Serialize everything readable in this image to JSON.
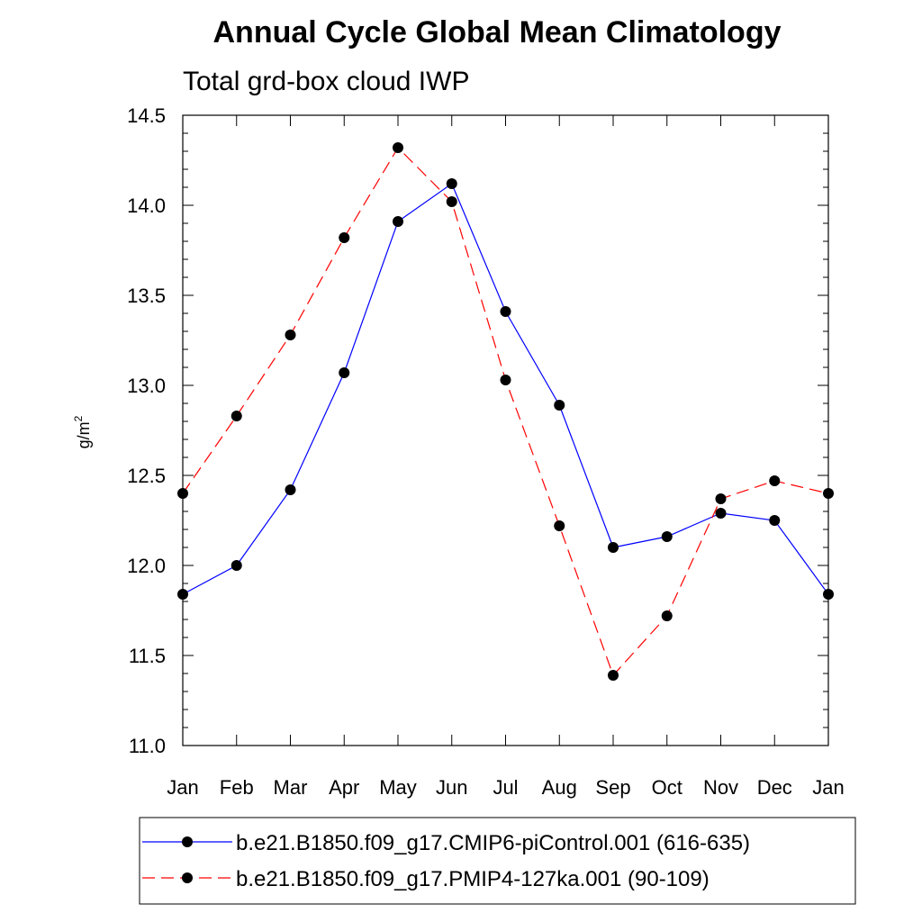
{
  "chart_data": {
    "type": "line",
    "title": "Annual Cycle Global Mean Climatology",
    "subtitle": "Total grd-box cloud IWP",
    "xlabel": "",
    "ylabel_base": "g/m",
    "ylabel_sup": "2",
    "categories": [
      "Jan",
      "Feb",
      "Mar",
      "Apr",
      "May",
      "Jun",
      "Jul",
      "Aug",
      "Sep",
      "Oct",
      "Nov",
      "Dec",
      "Jan"
    ],
    "ylim": [
      11.0,
      14.5
    ],
    "yticks": [
      "11.0",
      "11.5",
      "12.0",
      "12.5",
      "13.0",
      "13.5",
      "14.0",
      "14.5"
    ],
    "grid": false,
    "legend_position": "bottom",
    "series": [
      {
        "name": "b.e21.B1850.f09_g17.CMIP6-piControl.001 (616-635)",
        "color": "#0000ff",
        "dash": "solid",
        "values": [
          11.84,
          12.0,
          12.42,
          13.07,
          13.91,
          14.12,
          13.41,
          12.89,
          12.1,
          12.16,
          12.29,
          12.25,
          11.84
        ]
      },
      {
        "name": "b.e21.B1850.f09_g17.PMIP4-127ka.001 (90-109)",
        "color": "#ff0000",
        "dash": "dashed",
        "values": [
          12.4,
          12.83,
          13.28,
          13.82,
          14.32,
          14.02,
          13.03,
          12.22,
          11.39,
          11.72,
          12.37,
          12.47,
          12.4
        ]
      }
    ]
  }
}
